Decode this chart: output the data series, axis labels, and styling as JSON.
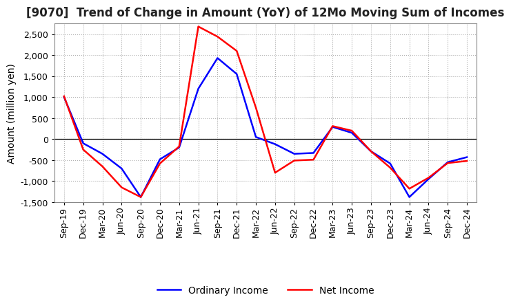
{
  "title": "[9070]  Trend of Change in Amount (YoY) of 12Mo Moving Sum of Incomes",
  "ylabel": "Amount (million yen)",
  "x_labels": [
    "Sep-19",
    "Dec-19",
    "Mar-20",
    "Jun-20",
    "Sep-20",
    "Dec-20",
    "Mar-21",
    "Jun-21",
    "Sep-21",
    "Dec-21",
    "Mar-22",
    "Jun-22",
    "Sep-22",
    "Dec-22",
    "Mar-23",
    "Jun-23",
    "Sep-23",
    "Dec-23",
    "Mar-24",
    "Jun-24",
    "Sep-24",
    "Dec-24"
  ],
  "ordinary_income": [
    1000,
    -100,
    -350,
    -700,
    -1380,
    -480,
    -200,
    1200,
    1930,
    1550,
    50,
    -120,
    -350,
    -330,
    290,
    150,
    -290,
    -580,
    -1380,
    -950,
    -550,
    -430
  ],
  "net_income": [
    1020,
    -250,
    -650,
    -1150,
    -1380,
    -580,
    -175,
    2680,
    2440,
    2100,
    750,
    -800,
    -510,
    -490,
    310,
    200,
    -290,
    -680,
    -1180,
    -920,
    -570,
    -520
  ],
  "ordinary_income_color": "#0000ff",
  "net_income_color": "#ff0000",
  "legend_labels": [
    "Ordinary Income",
    "Net Income"
  ],
  "ylim": [
    -1500,
    2750
  ],
  "yticks": [
    -1500,
    -1000,
    -500,
    0,
    500,
    1000,
    1500,
    2000,
    2500
  ],
  "background_color": "#ffffff",
  "grid_color": "#b0b0b0",
  "line_width": 1.8,
  "title_fontsize": 12,
  "axis_label_fontsize": 10,
  "tick_fontsize": 9,
  "legend_fontsize": 10
}
